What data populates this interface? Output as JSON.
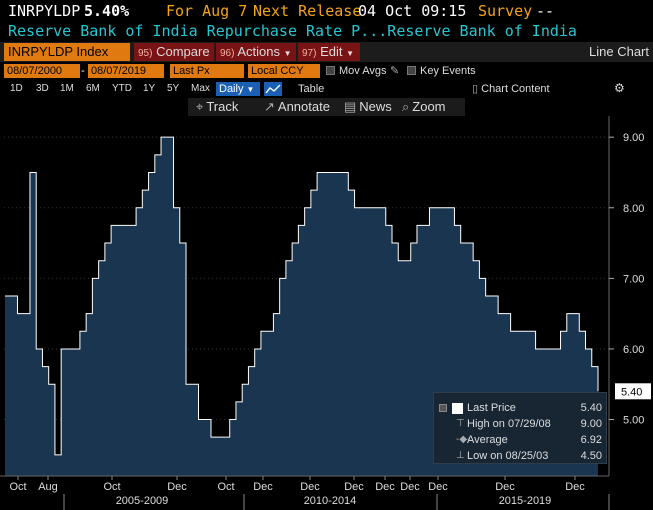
{
  "ticker": {
    "symbol": "INRPYLDP",
    "price": "5.40%",
    "for_label": "For Aug 7",
    "next_release_label": "Next Release",
    "next_release_value": "04 Oct 09:15",
    "survey_label": "Survey",
    "survey_value": "--"
  },
  "description": "Reserve Bank of India Repurchase Rate P...Reserve Bank of India",
  "toolbar": {
    "security": "INRPYLDP Index",
    "compare_num": "95)",
    "compare": "Compare",
    "actions_num": "96)",
    "actions": "Actions",
    "edit_num": "97)",
    "edit": "Edit",
    "chart_type": "Line Chart"
  },
  "date_row": {
    "start": "08/07/2000",
    "end": "08/07/2019",
    "field": "Last Px",
    "currency": "Local CCY",
    "mov_avgs": "Mov Avgs",
    "key_events": "Key Events"
  },
  "periods": [
    "1D",
    "3D",
    "1M",
    "6M",
    "YTD",
    "1Y",
    "5Y",
    "Max"
  ],
  "period_selected": "Daily",
  "table_label": "Table",
  "chart_content_label": "Chart Content",
  "actions": {
    "track": "Track",
    "annotate": "Annotate",
    "news": "News",
    "zoom": "Zoom"
  },
  "legend": {
    "last_price_label": "Last Price",
    "last_price_value": "5.40",
    "high_label": "High on 07/29/08",
    "high_value": "9.00",
    "average_label": "Average",
    "average_value": "6.92",
    "low_label": "Low on 08/25/03",
    "low_value": "4.50"
  },
  "colors": {
    "accent": "#f4a21a",
    "desc": "#26c6d2",
    "fill": "#1a3550",
    "line": "#ffffff"
  },
  "chart_data": {
    "type": "area",
    "title": "",
    "ylabel": "",
    "ylim": [
      4.2,
      9.3
    ],
    "y_ticks": [
      "9.00",
      "8.00",
      "7.00",
      "6.00",
      "5.00"
    ],
    "current_value_label": "5.40",
    "x_tick_labels": [
      "Oct",
      "Aug",
      "Oct",
      "Dec",
      "Oct",
      "Dec",
      "Dec",
      "Dec",
      "Dec",
      "Dec",
      "Dec",
      "Dec",
      "Dec"
    ],
    "x_period_labels": [
      "2005-2009",
      "2010-2014",
      "2015-2019"
    ],
    "series": [
      {
        "values": [
          6.75,
          6.75,
          6.5,
          6.5,
          8.5,
          6.0,
          5.75,
          5.5,
          4.5,
          6.0,
          6.0,
          6.0,
          6.25,
          6.5,
          7.0,
          7.25,
          7.5,
          7.75,
          7.75,
          7.75,
          7.75,
          8.0,
          8.25,
          8.5,
          8.75,
          9.0,
          9.0,
          8.0,
          7.5,
          5.5,
          5.5,
          5.0,
          5.0,
          4.75,
          4.75,
          4.75,
          5.0,
          5.25,
          5.5,
          5.75,
          6.0,
          6.25,
          6.25,
          6.5,
          7.0,
          7.25,
          7.5,
          7.75,
          8.0,
          8.25,
          8.5,
          8.5,
          8.5,
          8.5,
          8.5,
          8.25,
          8.0,
          8.0,
          8.0,
          8.0,
          8.0,
          7.75,
          7.5,
          7.25,
          7.25,
          7.5,
          7.75,
          7.75,
          8.0,
          8.0,
          8.0,
          8.0,
          7.75,
          7.5,
          7.5,
          7.25,
          7.0,
          6.75,
          6.75,
          6.5,
          6.5,
          6.25,
          6.25,
          6.25,
          6.25,
          6.0,
          6.0,
          6.0,
          6.0,
          6.25,
          6.5,
          6.5,
          6.25,
          6.0,
          5.75,
          5.4
        ]
      }
    ]
  }
}
